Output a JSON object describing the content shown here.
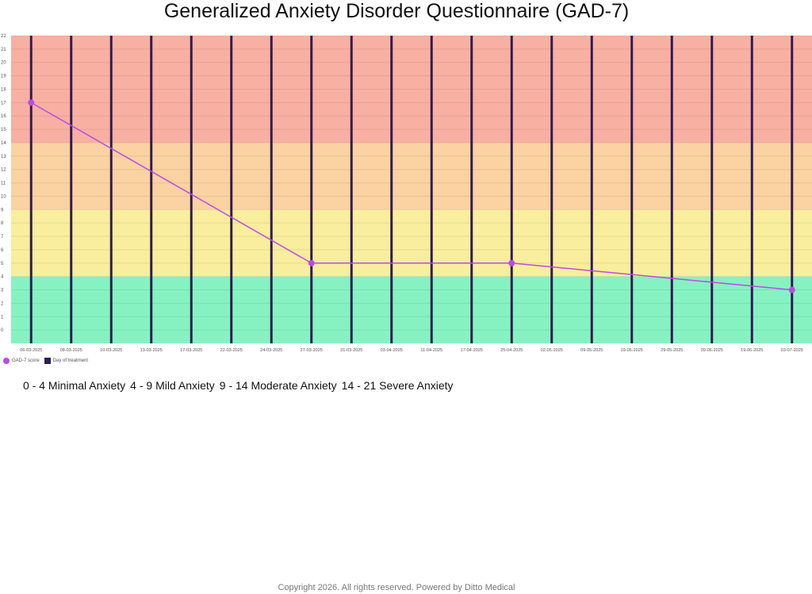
{
  "page": {
    "title": "Generalized Anxiety Disorder Questionnaire (GAD-7)",
    "footer": "Copyright  2026. All rights reserved. Powered by Ditto Medical"
  },
  "severity_ranges": [
    {
      "label": "0 - 4 Minimal Anxiety",
      "min": 0,
      "max": 4,
      "color": "#86f2c2"
    },
    {
      "label": "4 - 9 Mild Anxiety",
      "min": 4,
      "max": 9,
      "color": "#f9ed9e"
    },
    {
      "label": "9 - 14 Moderate Anxiety",
      "min": 9,
      "max": 14,
      "color": "#fbd2a2"
    },
    {
      "label": "14 - 21 Severe Anxiety",
      "min": 14,
      "max": 22,
      "color": "#f8b0a3"
    }
  ],
  "legend": [
    {
      "label": "GAD-7 score",
      "color": "#bb4be6",
      "shape": "dot"
    },
    {
      "label": "Day of treatment",
      "color": "#2f1b56",
      "shape": "square"
    }
  ],
  "chart_data": {
    "type": "line",
    "title": "Generalized Anxiety Disorder Questionnaire (GAD-7)",
    "xlabel": "",
    "ylabel": "",
    "ylim": [
      -1,
      22
    ],
    "y_ticks": [
      0,
      1,
      2,
      3,
      4,
      5,
      6,
      7,
      8,
      9,
      10,
      11,
      12,
      13,
      14,
      15,
      16,
      17,
      18,
      19,
      20,
      21,
      22
    ],
    "categories": [
      "06-03-2025",
      "08-03-2025",
      "10-03-2025",
      "13-03-2025",
      "17-03-2025",
      "22-03-2025",
      "24-03-2025",
      "27-03-2025",
      "31-03-2025",
      "03-04-2025",
      "11-04-2025",
      "17-04-2025",
      "25-04-2025",
      "02-05-2025",
      "09-05-2025",
      "19-05-2025",
      "29-05-2025",
      "09-06-2025",
      "19-06-2025",
      "03-07-2025"
    ],
    "series": [
      {
        "name": "GAD-7 score",
        "color": "#bb4be6",
        "points": [
          {
            "x": "06-03-2025",
            "y": 17
          },
          {
            "x": "27-03-2025",
            "y": 5
          },
          {
            "x": "25-04-2025",
            "y": 5
          },
          {
            "x": "03-07-2025",
            "y": 3
          }
        ]
      }
    ],
    "treatment_days": [
      "06-03-2025",
      "08-03-2025",
      "10-03-2025",
      "13-03-2025",
      "17-03-2025",
      "22-03-2025",
      "24-03-2025",
      "27-03-2025",
      "31-03-2025",
      "03-04-2025",
      "11-04-2025",
      "17-04-2025",
      "25-04-2025",
      "02-05-2025",
      "09-05-2025",
      "19-05-2025",
      "29-05-2025",
      "09-06-2025",
      "19-06-2025",
      "03-07-2025"
    ],
    "treatment_color": "#2f1b56",
    "grid": true,
    "legend_position": "bottom-left"
  }
}
